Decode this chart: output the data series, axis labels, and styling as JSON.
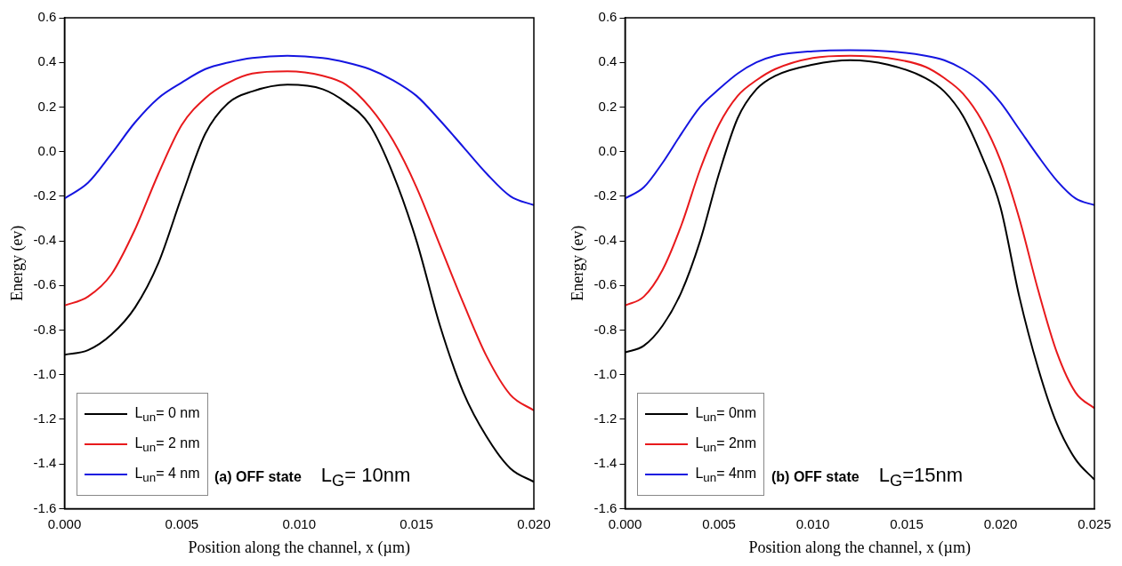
{
  "chart_data": [
    {
      "type": "line",
      "xlabel": "Position along the channel, x (µm)",
      "ylabel": "Energy (ev)",
      "xlim": [
        0,
        0.02
      ],
      "xticks": [
        {
          "value": 0,
          "label": "0.000"
        },
        {
          "value": 0.005,
          "label": "0.005"
        },
        {
          "value": 0.01,
          "label": "0.010"
        },
        {
          "value": 0.015,
          "label": "0.015"
        },
        {
          "value": 0.02,
          "label": "0.020"
        }
      ],
      "ylim": [
        -1.6,
        0.6
      ],
      "yticks": [
        {
          "value": -1.6,
          "label": "-1.6"
        },
        {
          "value": -1.4,
          "label": "-1.4"
        },
        {
          "value": -1.2,
          "label": "-1.2"
        },
        {
          "value": -1.0,
          "label": "-1.0"
        },
        {
          "value": -0.8,
          "label": "-0.8"
        },
        {
          "value": -0.6,
          "label": "-0.6"
        },
        {
          "value": -0.4,
          "label": "-0.4"
        },
        {
          "value": -0.2,
          "label": "-0.2"
        },
        {
          "value": 0,
          "label": "0.0"
        },
        {
          "value": 0.2,
          "label": "0.2"
        },
        {
          "value": 0.4,
          "label": "0.4"
        },
        {
          "value": 0.6,
          "label": "0.6"
        }
      ],
      "x": [
        0,
        0.001,
        0.002,
        0.003,
        0.004,
        0.005,
        0.006,
        0.007,
        0.008,
        0.0095,
        0.011,
        0.012,
        0.013,
        0.014,
        0.015,
        0.016,
        0.017,
        0.018,
        0.019,
        0.02
      ],
      "series": [
        {
          "name": "L$_{un}$= 0 nm",
          "color": "#000000",
          "values": [
            -0.91,
            -0.89,
            -0.82,
            -0.7,
            -0.5,
            -0.2,
            0.08,
            0.22,
            0.27,
            0.3,
            0.28,
            0.22,
            0.12,
            -0.1,
            -0.4,
            -0.78,
            -1.08,
            -1.28,
            -1.42,
            -1.48
          ]
        },
        {
          "name": "L$_{un}$= 2 nm",
          "color": "#e8191c",
          "values": [
            -0.69,
            -0.65,
            -0.55,
            -0.35,
            -0.1,
            0.12,
            0.24,
            0.31,
            0.35,
            0.36,
            0.34,
            0.3,
            0.2,
            0.05,
            -0.16,
            -0.42,
            -0.68,
            -0.92,
            -1.09,
            -1.16
          ]
        },
        {
          "name": "L$_{un}$= 4 nm",
          "color": "#1515e0",
          "values": [
            -0.21,
            -0.14,
            -0.01,
            0.13,
            0.24,
            0.31,
            0.37,
            0.4,
            0.42,
            0.43,
            0.42,
            0.4,
            0.37,
            0.32,
            0.25,
            0.14,
            0.02,
            -0.1,
            -0.2,
            -0.24
          ]
        }
      ],
      "legend": "bottom left",
      "grid": false,
      "annotations": [
        "(a) OFF state",
        "L$_{G}$= 10nm"
      ]
    },
    {
      "type": "line",
      "xlabel": "Position along the channel, x (µm)",
      "ylabel": "Energy (ev)",
      "xlim": [
        0,
        0.025
      ],
      "xticks": [
        {
          "value": 0,
          "label": "0.000"
        },
        {
          "value": 0.005,
          "label": "0.005"
        },
        {
          "value": 0.01,
          "label": "0.010"
        },
        {
          "value": 0.015,
          "label": "0.015"
        },
        {
          "value": 0.02,
          "label": "0.020"
        },
        {
          "value": 0.025,
          "label": "0.025"
        }
      ],
      "ylim": [
        -1.6,
        0.6
      ],
      "yticks": [
        {
          "value": -1.6,
          "label": "-1.6"
        },
        {
          "value": -1.4,
          "label": "-1.4"
        },
        {
          "value": -1.2,
          "label": "-1.2"
        },
        {
          "value": -1.0,
          "label": "-1.0"
        },
        {
          "value": -0.8,
          "label": "-0.8"
        },
        {
          "value": -0.6,
          "label": "-0.6"
        },
        {
          "value": -0.4,
          "label": "-0.4"
        },
        {
          "value": -0.2,
          "label": "-0.2"
        },
        {
          "value": 0,
          "label": "0.0"
        },
        {
          "value": 0.2,
          "label": "0.2"
        },
        {
          "value": 0.4,
          "label": "0.4"
        },
        {
          "value": 0.6,
          "label": "0.6"
        }
      ],
      "x": [
        0,
        0.001,
        0.002,
        0.003,
        0.004,
        0.005,
        0.006,
        0.007,
        0.008,
        0.01,
        0.012,
        0.014,
        0.016,
        0.017,
        0.018,
        0.019,
        0.02,
        0.021,
        0.022,
        0.023,
        0.024,
        0.025
      ],
      "series": [
        {
          "name": "L$_{un}$= 0nm",
          "color": "#000000",
          "values": [
            -0.9,
            -0.87,
            -0.78,
            -0.63,
            -0.4,
            -0.1,
            0.15,
            0.28,
            0.34,
            0.39,
            0.41,
            0.39,
            0.33,
            0.27,
            0.16,
            -0.02,
            -0.25,
            -0.65,
            -0.97,
            -1.22,
            -1.38,
            -1.47
          ]
        },
        {
          "name": "L$_{un}$= 2nm",
          "color": "#e8191c",
          "values": [
            -0.69,
            -0.65,
            -0.53,
            -0.33,
            -0.08,
            0.12,
            0.25,
            0.32,
            0.37,
            0.42,
            0.43,
            0.42,
            0.38,
            0.33,
            0.26,
            0.14,
            -0.04,
            -0.3,
            -0.62,
            -0.9,
            -1.08,
            -1.15
          ]
        },
        {
          "name": "L$_{un}$= 4nm",
          "color": "#1515e0",
          "values": [
            -0.21,
            -0.16,
            -0.05,
            0.08,
            0.2,
            0.28,
            0.35,
            0.4,
            0.43,
            0.45,
            0.455,
            0.45,
            0.43,
            0.41,
            0.37,
            0.31,
            0.22,
            0.1,
            -0.02,
            -0.13,
            -0.21,
            -0.24
          ]
        }
      ],
      "legend": "bottom left",
      "grid": false,
      "annotations": [
        "(b) OFF state",
        "L$_{G}$=15nm"
      ]
    }
  ]
}
